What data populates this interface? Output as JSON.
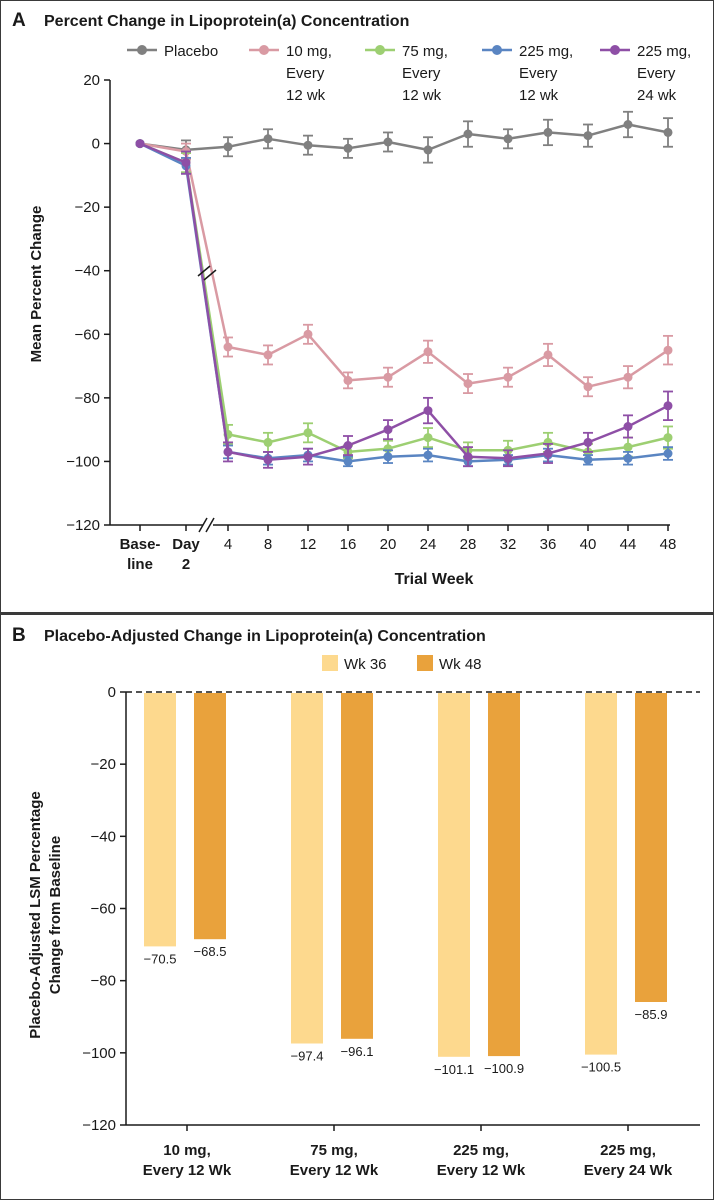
{
  "chart_data": [
    {
      "type": "line",
      "panel_letter": "A",
      "title": "Percent Change in Lipoprotein(a) Concentration",
      "xlabel": "Trial Week",
      "ylabel": "Mean Percent Change",
      "ylim": [
        -120,
        20
      ],
      "yticks": [
        "20",
        "0",
        "−20",
        "−40",
        "−60",
        "−80",
        "−100",
        "−120"
      ],
      "x_labels": [
        [
          "Base-",
          "line"
        ],
        [
          "Day",
          "2"
        ],
        [
          "4"
        ],
        [
          "8"
        ],
        [
          "12"
        ],
        [
          "16"
        ],
        [
          "20"
        ],
        [
          "24"
        ],
        [
          "28"
        ],
        [
          "32"
        ],
        [
          "36"
        ],
        [
          "40"
        ],
        [
          "44"
        ],
        [
          "48"
        ]
      ],
      "axis_break": true,
      "legend_position": "top",
      "grid": false,
      "series": [
        {
          "name": [
            "Placebo"
          ],
          "color": "#808080",
          "values": [
            0,
            -2,
            -1,
            1.5,
            -0.5,
            -1.5,
            0.5,
            -2,
            3,
            1.5,
            3.5,
            2.5,
            6,
            3.5
          ],
          "errors": [
            0,
            3,
            3,
            3,
            3,
            3,
            3,
            4,
            4,
            3,
            4,
            3.5,
            4,
            4.5
          ]
        },
        {
          "name": [
            "10 mg,",
            "Every",
            "12 wk"
          ],
          "color": "#d99aa3",
          "values": [
            0,
            -2.5,
            -64,
            -66.5,
            -60,
            -74.5,
            -73.5,
            -65.5,
            -75.5,
            -73.5,
            -66.5,
            -76.5,
            -73.5,
            -65
          ],
          "errors": [
            0,
            2.5,
            3,
            3,
            3,
            2.5,
            3,
            3.5,
            3,
            3,
            3.5,
            3,
            3.5,
            4.5
          ]
        },
        {
          "name": [
            "75 mg,",
            "Every",
            "12 wk"
          ],
          "color": "#9dcf72",
          "values": [
            0,
            -6,
            -91.5,
            -94,
            -91,
            -97,
            -96,
            -92.5,
            -96.5,
            -96.5,
            -94,
            -97,
            -95.5,
            -92.5
          ],
          "errors": [
            0,
            3,
            3,
            3,
            3,
            2,
            2.5,
            3,
            2.5,
            3,
            3,
            2.5,
            3,
            3.5
          ]
        },
        {
          "name": [
            "225 mg,",
            "Every",
            "12 wk"
          ],
          "color": "#5a85c2",
          "values": [
            0,
            -7,
            -97,
            -99,
            -98,
            -100,
            -98.5,
            -98,
            -100,
            -99.5,
            -98,
            -99.5,
            -99,
            -97.5
          ],
          "errors": [
            0,
            2.5,
            2,
            2,
            2,
            1.5,
            2,
            2,
            1.5,
            1.5,
            2,
            1.5,
            2,
            2
          ]
        },
        {
          "name": [
            "225 mg,",
            "Every",
            "24 wk"
          ],
          "color": "#8e4fa6",
          "values": [
            0,
            -6,
            -97,
            -99.5,
            -98.5,
            -95,
            -90,
            -84,
            -98.5,
            -99,
            -97.5,
            -94,
            -89,
            -82.5
          ],
          "errors": [
            0,
            3.5,
            3,
            2.5,
            2.5,
            3,
            3,
            4,
            3,
            2.5,
            3,
            3,
            3.5,
            4.5
          ]
        }
      ]
    },
    {
      "type": "bar",
      "panel_letter": "B",
      "title": "Placebo-Adjusted Change in Lipoprotein(a) Concentration",
      "ylabel": [
        "Placebo-Adjusted LSM Percentage",
        "Change from Baseline"
      ],
      "ylim": [
        -120,
        0
      ],
      "yticks": [
        "0",
        "−20",
        "−40",
        "−60",
        "−80",
        "−100",
        "−120"
      ],
      "legend_position": "top",
      "grid": false,
      "categories": [
        [
          "10 mg,",
          "Every 12 Wk"
        ],
        [
          "75 mg,",
          "Every 12 Wk"
        ],
        [
          "225 mg,",
          "Every 12 Wk"
        ],
        [
          "225 mg,",
          "Every 24 Wk"
        ]
      ],
      "series": [
        {
          "name": "Wk 36",
          "color": "#fdd98e",
          "values": [
            -70.5,
            -97.4,
            -101.1,
            -100.5
          ],
          "value_labels": [
            "−70.5",
            "−97.4",
            "−101.1",
            "−100.5"
          ]
        },
        {
          "name": "Wk 48",
          "color": "#e9a23c",
          "values": [
            -68.5,
            -96.1,
            -100.9,
            -85.9
          ],
          "value_labels": [
            "−68.5",
            "−96.1",
            "−100.9",
            "−85.9"
          ]
        }
      ]
    }
  ]
}
